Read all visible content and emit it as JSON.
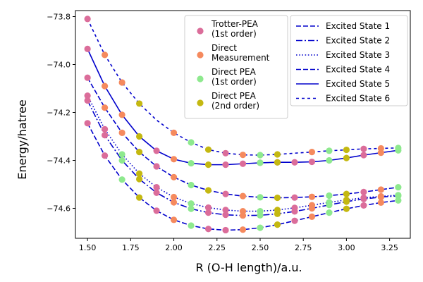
{
  "chart_data": {
    "type": "line",
    "xlabel": "R (O-H length)/a.u.",
    "ylabel": "Energy/hatree",
    "xlim": [
      1.43,
      3.37
    ],
    "ylim": [
      -74.725,
      -73.775
    ],
    "xticks": [
      1.5,
      1.75,
      2.0,
      2.25,
      2.5,
      2.75,
      3.0,
      3.25
    ],
    "xtick_labels": [
      "1.50",
      "1.75",
      "2.00",
      "2.25",
      "2.50",
      "2.75",
      "3.00",
      "3.25"
    ],
    "yticks": [
      -74.6,
      -74.4,
      -74.2,
      -74.0,
      -73.8
    ],
    "ytick_labels": [
      "−74.6",
      "−74.4",
      "−74.2",
      "−74.0",
      "−73.8"
    ],
    "line_color": "#0000cc",
    "series": [
      {
        "name": "Excited State 1",
        "dash": "dashed",
        "x": [
          1.5,
          1.6,
          1.7,
          1.8,
          1.9,
          2.0,
          2.1,
          2.2,
          2.3,
          2.4,
          2.5,
          2.6,
          2.7,
          2.8,
          2.9,
          3.0,
          3.1,
          3.2,
          3.3
        ],
        "y": [
          -74.245,
          -74.38,
          -74.48,
          -74.555,
          -74.61,
          -74.648,
          -74.672,
          -74.686,
          -74.691,
          -74.689,
          -74.681,
          -74.668,
          -74.652,
          -74.635,
          -74.618,
          -74.602,
          -74.588,
          -74.576,
          -74.567
        ]
      },
      {
        "name": "Excited State 2",
        "dash": "dashdot",
        "x": [
          1.5,
          1.6,
          1.7,
          1.8,
          1.9,
          2.0,
          2.1,
          2.2,
          2.3,
          2.4,
          2.5,
          2.6,
          2.7,
          2.8,
          2.9,
          3.0,
          3.1,
          3.2,
          3.3
        ],
        "y": [
          -74.15,
          -74.295,
          -74.4,
          -74.478,
          -74.535,
          -74.575,
          -74.602,
          -74.618,
          -74.627,
          -74.63,
          -74.629,
          -74.623,
          -74.613,
          -74.6,
          -74.586,
          -74.572,
          -74.561,
          -74.553,
          -74.548
        ]
      },
      {
        "name": "Excited State 3",
        "dash": "dotted",
        "x": [
          1.5,
          1.6,
          1.7,
          1.8,
          1.9,
          2.0,
          2.1,
          2.2,
          2.3,
          2.4,
          2.5,
          2.6,
          2.7,
          2.8,
          2.9,
          3.0,
          3.1,
          3.2,
          3.3
        ],
        "y": [
          -74.13,
          -74.27,
          -74.375,
          -74.455,
          -74.512,
          -74.553,
          -74.58,
          -74.597,
          -74.607,
          -74.612,
          -74.612,
          -74.607,
          -74.598,
          -74.587,
          -74.575,
          -74.565,
          -74.556,
          -74.55,
          -74.545
        ]
      },
      {
        "name": "Excited State 4",
        "dash": "dashed",
        "x": [
          1.5,
          1.6,
          1.7,
          1.8,
          1.9,
          2.0,
          2.1,
          2.2,
          2.3,
          2.4,
          2.5,
          2.6,
          2.7,
          2.8,
          2.9,
          3.0,
          3.1,
          3.2,
          3.3
        ],
        "y": [
          -74.055,
          -74.18,
          -74.285,
          -74.365,
          -74.425,
          -74.47,
          -74.503,
          -74.525,
          -74.54,
          -74.549,
          -74.554,
          -74.556,
          -74.555,
          -74.552,
          -74.547,
          -74.54,
          -74.532,
          -74.522,
          -74.512
        ]
      },
      {
        "name": "Excited State 5",
        "dash": "solid",
        "x": [
          1.5,
          1.6,
          1.7,
          1.8,
          1.9,
          2.0,
          2.1,
          2.2,
          2.3,
          2.4,
          2.5,
          2.6,
          2.7,
          2.8,
          2.9,
          3.0,
          3.1,
          3.2,
          3.3
        ],
        "y": [
          -73.935,
          -74.09,
          -74.21,
          -74.3,
          -74.36,
          -74.395,
          -74.412,
          -74.418,
          -74.418,
          -74.414,
          -74.41,
          -74.408,
          -74.408,
          -74.406,
          -74.4,
          -74.39,
          -74.378,
          -74.368,
          -74.358
        ]
      },
      {
        "name": "Excited State 6",
        "dash": "finedash",
        "x": [
          1.5,
          1.6,
          1.7,
          1.8,
          1.9,
          2.0,
          2.1,
          2.2,
          2.3,
          2.4,
          2.5,
          2.6,
          2.7,
          2.8,
          2.9,
          3.0,
          3.1,
          3.2,
          3.3
        ],
        "y": [
          -73.81,
          -73.96,
          -74.075,
          -74.163,
          -74.232,
          -74.285,
          -74.325,
          -74.355,
          -74.37,
          -74.377,
          -74.378,
          -74.375,
          -74.37,
          -74.365,
          -74.36,
          -74.356,
          -74.352,
          -74.35,
          -74.348
        ]
      }
    ],
    "markers": [
      {
        "name": "Trotter-PEA (1st order)",
        "label_lines": [
          "Trotter-PEA",
          "(1st order)"
        ],
        "color": "#db6d9a",
        "points": [
          [
            1.5,
            -74.245
          ],
          [
            1.5,
            -74.15
          ],
          [
            1.5,
            -74.13
          ],
          [
            1.5,
            -74.055
          ],
          [
            1.5,
            -73.935
          ],
          [
            1.5,
            -73.81
          ],
          [
            1.6,
            -74.38
          ],
          [
            1.6,
            -74.295
          ],
          [
            1.6,
            -74.27
          ],
          [
            1.9,
            -74.61
          ],
          [
            1.9,
            -74.535
          ],
          [
            1.9,
            -74.512
          ],
          [
            1.9,
            -74.425
          ],
          [
            1.9,
            -74.36
          ],
          [
            2.2,
            -74.686
          ],
          [
            2.2,
            -74.618
          ],
          [
            2.2,
            -74.597
          ],
          [
            2.3,
            -74.691
          ],
          [
            2.3,
            -74.627
          ],
          [
            2.3,
            -74.607
          ],
          [
            2.3,
            -74.54
          ],
          [
            2.3,
            -74.418
          ],
          [
            2.3,
            -74.37
          ],
          [
            2.4,
            -74.414
          ],
          [
            2.5,
            -74.41
          ],
          [
            2.6,
            -74.408
          ],
          [
            2.7,
            -74.408
          ],
          [
            2.8,
            -74.406
          ],
          [
            2.7,
            -74.652
          ],
          [
            2.7,
            -74.613
          ],
          [
            2.7,
            -74.598
          ],
          [
            2.7,
            -74.555
          ],
          [
            3.1,
            -74.588
          ],
          [
            3.1,
            -74.561
          ],
          [
            3.1,
            -74.556
          ],
          [
            3.1,
            -74.532
          ],
          [
            3.1,
            -74.378
          ],
          [
            3.1,
            -74.352
          ]
        ]
      },
      {
        "name": "Direct Measurement",
        "label_lines": [
          "Direct",
          "Measurement"
        ],
        "color": "#f58a5e",
        "points": [
          [
            1.6,
            -73.96
          ],
          [
            1.6,
            -74.09
          ],
          [
            1.6,
            -74.18
          ],
          [
            1.7,
            -74.075
          ],
          [
            1.7,
            -74.21
          ],
          [
            1.7,
            -74.285
          ],
          [
            2.0,
            -74.648
          ],
          [
            2.0,
            -74.575
          ],
          [
            2.0,
            -74.553
          ],
          [
            2.0,
            -74.47
          ],
          [
            2.0,
            -74.395
          ],
          [
            2.0,
            -74.285
          ],
          [
            2.4,
            -74.689
          ],
          [
            2.4,
            -74.63
          ],
          [
            2.4,
            -74.612
          ],
          [
            2.4,
            -74.549
          ],
          [
            2.4,
            -74.377
          ],
          [
            2.8,
            -74.635
          ],
          [
            2.8,
            -74.6
          ],
          [
            2.8,
            -74.587
          ],
          [
            2.8,
            -74.552
          ],
          [
            2.8,
            -74.365
          ],
          [
            3.2,
            -74.576
          ],
          [
            3.2,
            -74.553
          ],
          [
            3.2,
            -74.55
          ],
          [
            3.2,
            -74.522
          ],
          [
            3.2,
            -74.368
          ],
          [
            3.2,
            -74.35
          ]
        ]
      },
      {
        "name": "Direct PEA (1st order)",
        "label_lines": [
          "Direct PEA",
          "(1st order)"
        ],
        "color": "#8ee98e",
        "points": [
          [
            1.7,
            -74.48
          ],
          [
            1.7,
            -74.4
          ],
          [
            1.7,
            -74.375
          ],
          [
            2.1,
            -74.672
          ],
          [
            2.1,
            -74.602
          ],
          [
            2.1,
            -74.58
          ],
          [
            2.1,
            -74.503
          ],
          [
            2.1,
            -74.412
          ],
          [
            2.1,
            -74.325
          ],
          [
            2.5,
            -74.681
          ],
          [
            2.5,
            -74.629
          ],
          [
            2.5,
            -74.612
          ],
          [
            2.5,
            -74.554
          ],
          [
            2.5,
            -74.41
          ],
          [
            2.5,
            -74.378
          ],
          [
            2.9,
            -74.618
          ],
          [
            2.9,
            -74.586
          ],
          [
            2.9,
            -74.575
          ],
          [
            2.9,
            -74.547
          ],
          [
            2.9,
            -74.4
          ],
          [
            2.9,
            -74.36
          ],
          [
            3.3,
            -74.567
          ],
          [
            3.3,
            -74.548
          ],
          [
            3.3,
            -74.545
          ],
          [
            3.3,
            -74.512
          ],
          [
            3.3,
            -74.358
          ],
          [
            3.3,
            -74.348
          ]
        ]
      },
      {
        "name": "Direct PEA (2nd order)",
        "label_lines": [
          "Direct PEA",
          "(2nd order)"
        ],
        "color": "#c4b811",
        "points": [
          [
            1.8,
            -74.555
          ],
          [
            1.8,
            -74.478
          ],
          [
            1.8,
            -74.455
          ],
          [
            1.8,
            -74.365
          ],
          [
            1.8,
            -74.3
          ],
          [
            1.8,
            -74.163
          ],
          [
            2.2,
            -74.525
          ],
          [
            2.2,
            -74.418
          ],
          [
            2.2,
            -74.355
          ],
          [
            2.6,
            -74.668
          ],
          [
            2.6,
            -74.623
          ],
          [
            2.6,
            -74.607
          ],
          [
            2.6,
            -74.556
          ],
          [
            2.6,
            -74.408
          ],
          [
            2.6,
            -74.375
          ],
          [
            3.0,
            -74.602
          ],
          [
            3.0,
            -74.572
          ],
          [
            3.0,
            -74.565
          ],
          [
            3.0,
            -74.54
          ],
          [
            3.0,
            -74.39
          ],
          [
            3.0,
            -74.356
          ]
        ]
      }
    ]
  }
}
